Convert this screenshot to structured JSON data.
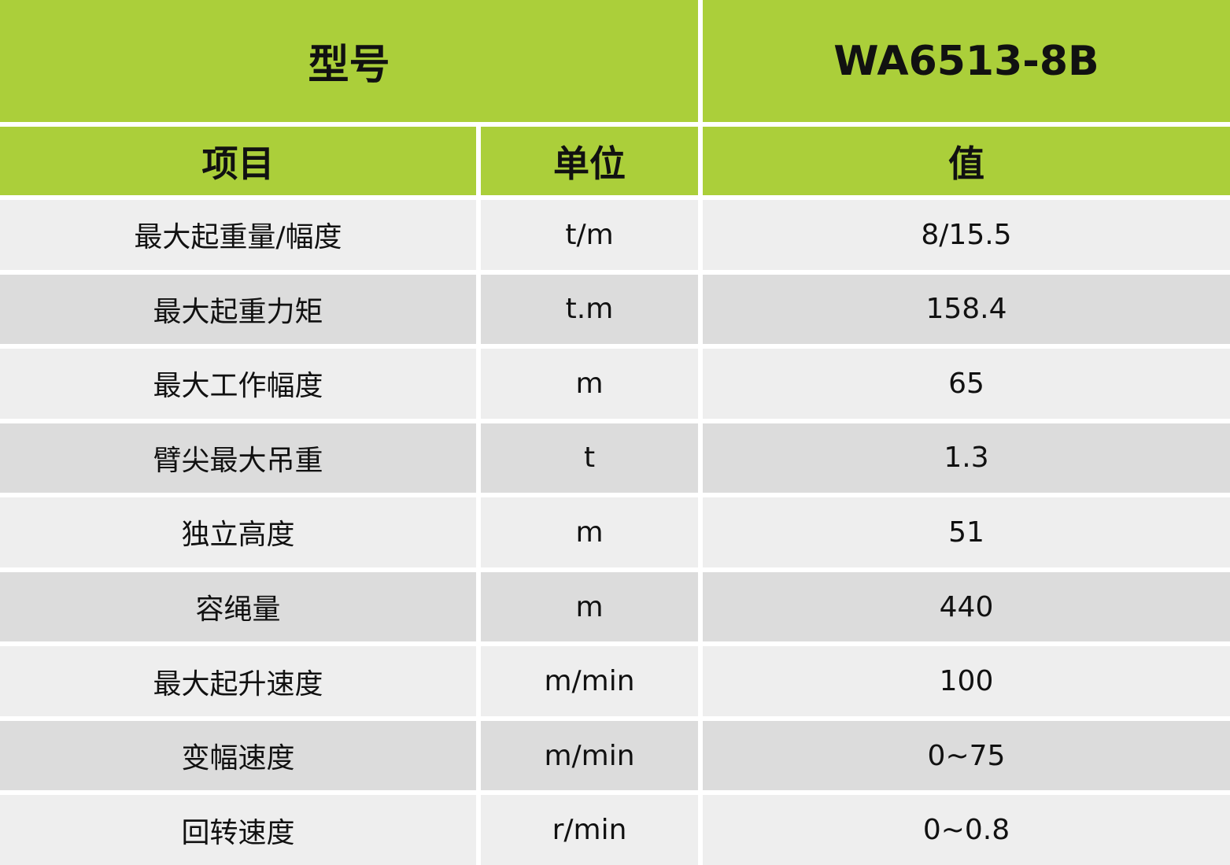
{
  "header": {
    "model_label": "型号",
    "model_value": "WA6513-8B"
  },
  "columns": [
    "项目",
    "单位",
    "值"
  ],
  "rows": [
    {
      "item": "最大起重量/幅度",
      "unit": "t/m",
      "value": "8/15.5"
    },
    {
      "item": "最大起重力矩",
      "unit": "t.m",
      "value": "158.4"
    },
    {
      "item": "最大工作幅度",
      "unit": "m",
      "value": "65"
    },
    {
      "item": "臂尖最大吊重",
      "unit": "t",
      "value": "1.3"
    },
    {
      "item": "独立高度",
      "unit": "m",
      "value": "51"
    },
    {
      "item": "容绳量",
      "unit": "m",
      "value": "440"
    },
    {
      "item": "最大起升速度",
      "unit": "m/min",
      "value": "100"
    },
    {
      "item": "变幅速度",
      "unit": "m/min",
      "value": "0~75"
    },
    {
      "item": "回转速度",
      "unit": "r/min",
      "value": "0~0.8"
    }
  ],
  "colors": {
    "header": "#abcf3a",
    "row_light": "#eeeeee",
    "row_dark": "#dcdcdc"
  }
}
